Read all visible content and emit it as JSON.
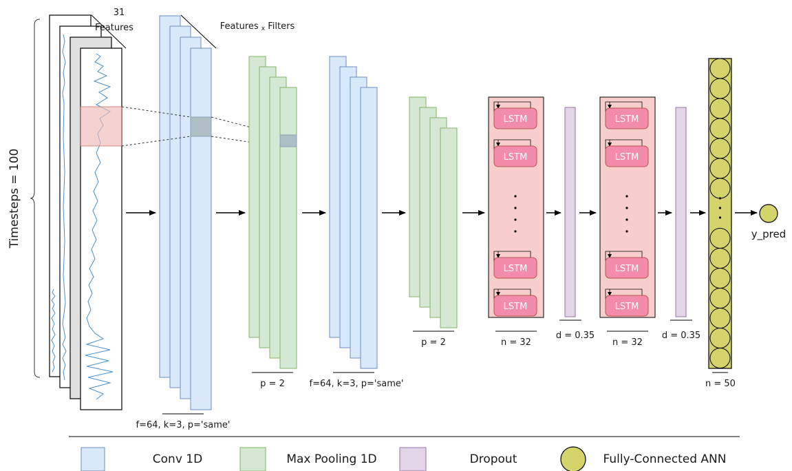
{
  "input": {
    "features_count": "31",
    "features_label": "Features",
    "timesteps_label": "Timesteps = 100",
    "features_filters_main": "Features",
    "features_filters_sub": "x",
    "features_filters_tail": "Filters"
  },
  "layers": {
    "conv1_label": "f=64, k=3, p='same'",
    "pool1_label": "p = 2",
    "conv2_label": "f=64, k=3, p='same'",
    "pool2_label": "p = 2",
    "lstm1_label": "n = 32",
    "dropout1_label": "d = 0.35",
    "lstm2_label": "n = 32",
    "dropout2_label": "d = 0.35",
    "dense_label": "n = 50",
    "output_label": "y_pred",
    "lstm_cell": "LSTM"
  },
  "legend": {
    "conv": "Conv 1D",
    "pool": "Max Pooling 1D",
    "dropout": "Dropout",
    "fc": "Fully-Connected ANN"
  },
  "colors": {
    "conv_fill": "#dae8fc",
    "conv_stroke": "#6c8ebf",
    "pool_fill": "#d5e8d4",
    "pool_stroke": "#82b366",
    "dropout_fill": "#e1d5e7",
    "dropout_stroke": "#9673a6",
    "fc_fill": "#d4d46a",
    "lstm_block": "#f8cecc",
    "lstm_cell": "#f38cab",
    "signal": "#4a90c8"
  }
}
